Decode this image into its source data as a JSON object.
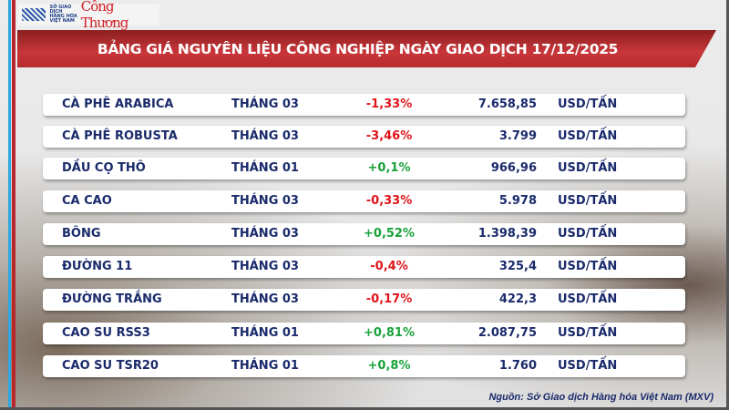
{
  "header": {
    "logo_mxv": "SỞ GIAO DỊCH HÀNG HÓA VIỆT NAM",
    "logo_brand": "Công Thương",
    "title": "BẢNG GIÁ NGUYÊN LIỆU CÔNG NGHIỆP NGÀY GIAO DỊCH 17/12/2025"
  },
  "colors": {
    "negative": "#e0131a",
    "positive": "#18a23a",
    "text": "#1a2a6b",
    "banner": "#c9363a"
  },
  "rows": [
    {
      "name": "CÀ PHÊ ARABICA",
      "month": "THÁNG 03",
      "change": "-1,33%",
      "price": "7.658,85",
      "unit": "USD/TẤN"
    },
    {
      "name": "CÀ PHÊ ROBUSTA",
      "month": "THÁNG 03",
      "change": "-3,46%",
      "price": "3.799",
      "unit": "USD/TẤN"
    },
    {
      "name": "DẦU CỌ THÔ",
      "month": "THÁNG 01",
      "change": "+0,1%",
      "price": "966,96",
      "unit": "USD/TẤN"
    },
    {
      "name": "CA CAO",
      "month": "THÁNG 03",
      "change": "-0,33%",
      "price": "5.978",
      "unit": "USD/TẤN"
    },
    {
      "name": "BÔNG",
      "month": "THÁNG 03",
      "change": "+0,52%",
      "price": "1.398,39",
      "unit": "USD/TẤN"
    },
    {
      "name": "ĐƯỜNG 11",
      "month": "THÁNG 03",
      "change": "-0,4%",
      "price": "325,4",
      "unit": "USD/TẤN"
    },
    {
      "name": "ĐƯỜNG TRẮNG",
      "month": "THÁNG 03",
      "change": "-0,17%",
      "price": "422,3",
      "unit": "USD/TẤN"
    },
    {
      "name": "CAO SU RSS3",
      "month": "THÁNG 01",
      "change": "+0,81%",
      "price": "2.087,75",
      "unit": "USD/TẤN"
    },
    {
      "name": "CAO SU TSR20",
      "month": "THÁNG 01",
      "change": "+0,8%",
      "price": "1.760",
      "unit": "USD/TẤN"
    }
  ],
  "footer": {
    "source": "Nguồn: Sở Giao dịch Hàng hóa Việt Nam (MXV)"
  }
}
